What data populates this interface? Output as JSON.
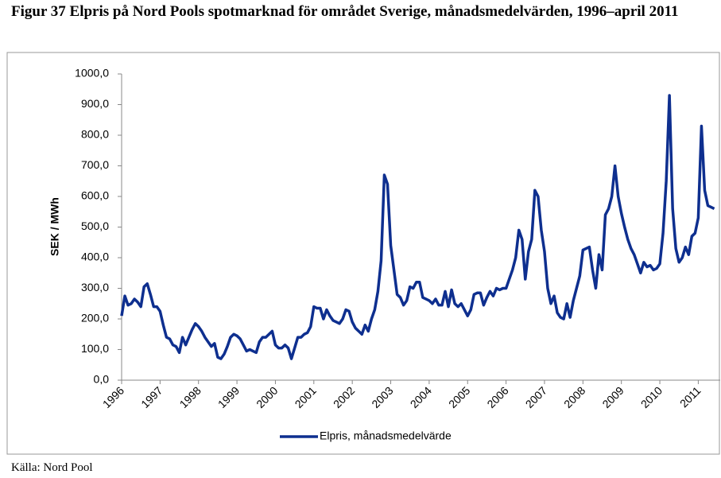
{
  "chart_data": {
    "type": "line",
    "title": "Figur 37 Elpris på Nord Pools spotmarknad för området Sverige, månadsmedelvärden, 1996–april 2011",
    "y_label": "SEK / MWh",
    "source": "Källa: Nord Pool",
    "categories": [
      "1996",
      null,
      null,
      null,
      null,
      null,
      null,
      null,
      null,
      null,
      null,
      null,
      "1997",
      null,
      null,
      null,
      null,
      null,
      null,
      null,
      null,
      null,
      null,
      null,
      "1998",
      null,
      null,
      null,
      null,
      null,
      null,
      null,
      null,
      null,
      null,
      null,
      "1999",
      null,
      null,
      null,
      null,
      null,
      null,
      null,
      null,
      null,
      null,
      null,
      "2000",
      null,
      null,
      null,
      null,
      null,
      null,
      null,
      null,
      null,
      null,
      null,
      "2001",
      null,
      null,
      null,
      null,
      null,
      null,
      null,
      null,
      null,
      null,
      null,
      "2002",
      null,
      null,
      null,
      null,
      null,
      null,
      null,
      null,
      null,
      null,
      null,
      "2003",
      null,
      null,
      null,
      null,
      null,
      null,
      null,
      null,
      null,
      null,
      null,
      "2004",
      null,
      null,
      null,
      null,
      null,
      null,
      null,
      null,
      null,
      null,
      null,
      "2005",
      null,
      null,
      null,
      null,
      null,
      null,
      null,
      null,
      null,
      null,
      null,
      "2006",
      null,
      null,
      null,
      null,
      null,
      null,
      null,
      null,
      null,
      null,
      null,
      "2007",
      null,
      null,
      null,
      null,
      null,
      null,
      null,
      null,
      null,
      null,
      null,
      "2008",
      null,
      null,
      null,
      null,
      null,
      null,
      null,
      null,
      null,
      null,
      null,
      "2009",
      null,
      null,
      null,
      null,
      null,
      null,
      null,
      null,
      null,
      null,
      null,
      "2010",
      null,
      null,
      null,
      null,
      null,
      null,
      null,
      null,
      null,
      null,
      null,
      "2011",
      null,
      null,
      null,
      null,
      null
    ],
    "series": [
      {
        "name": "Elpris, månadsmedelvärde",
        "color": "#0e2f8f",
        "values": [
          210,
          275,
          245,
          250,
          265,
          255,
          240,
          305,
          315,
          280,
          240,
          240,
          225,
          180,
          140,
          135,
          115,
          110,
          90,
          140,
          115,
          140,
          165,
          185,
          175,
          160,
          140,
          125,
          110,
          120,
          75,
          70,
          85,
          110,
          140,
          150,
          145,
          135,
          115,
          95,
          100,
          95,
          90,
          125,
          140,
          140,
          150,
          160,
          115,
          105,
          105,
          115,
          105,
          70,
          105,
          140,
          140,
          150,
          155,
          175,
          240,
          235,
          235,
          200,
          230,
          210,
          195,
          190,
          185,
          200,
          230,
          225,
          190,
          170,
          160,
          150,
          180,
          160,
          200,
          230,
          290,
          390,
          670,
          640,
          440,
          360,
          280,
          270,
          245,
          260,
          305,
          300,
          320,
          320,
          270,
          265,
          260,
          250,
          265,
          245,
          245,
          290,
          240,
          295,
          250,
          240,
          250,
          230,
          210,
          230,
          280,
          285,
          285,
          245,
          270,
          290,
          275,
          300,
          295,
          300,
          300,
          330,
          360,
          400,
          490,
          460,
          330,
          420,
          460,
          620,
          600,
          490,
          420,
          300,
          250,
          275,
          220,
          205,
          200,
          250,
          205,
          260,
          300,
          340,
          425,
          430,
          435,
          360,
          300,
          410,
          360,
          540,
          560,
          600,
          700,
          600,
          545,
          500,
          460,
          430,
          410,
          380,
          350,
          385,
          370,
          375,
          360,
          365,
          380,
          480,
          650,
          930,
          560,
          430,
          385,
          400,
          435,
          410,
          470,
          480,
          530,
          830,
          620,
          570,
          565,
          560
        ]
      }
    ],
    "ylim": [
      0,
      1000
    ],
    "yticks": [
      {
        "value": 0,
        "label": "0,0"
      },
      {
        "value": 100,
        "label": "100,0"
      },
      {
        "value": 200,
        "label": "200,0"
      },
      {
        "value": 300,
        "label": "300,0"
      },
      {
        "value": 400,
        "label": "400,0"
      },
      {
        "value": 500,
        "label": "500,0"
      },
      {
        "value": 600,
        "label": "600,0"
      },
      {
        "value": 700,
        "label": "700,0"
      },
      {
        "value": 800,
        "label": "800,0"
      },
      {
        "value": 900,
        "label": "900,0"
      },
      {
        "value": 1000,
        "label": "1000,0"
      }
    ],
    "grid": false,
    "legend": "bottom"
  }
}
